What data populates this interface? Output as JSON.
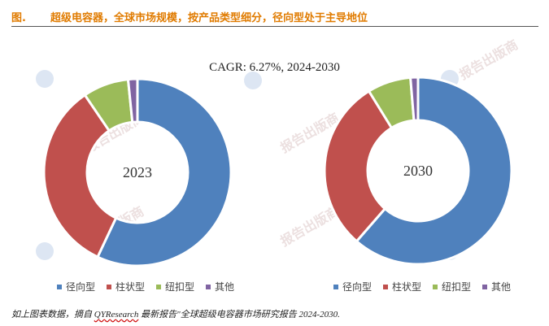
{
  "header": {
    "figure_label": "图.",
    "title": "超级电容器，全球市场规模，按产品类型细分，径向型处于主导地位"
  },
  "cagr_text": "CAGR: 6.27%, 2024-2030",
  "watermark_text": "报告出版商",
  "chart_data": [
    {
      "type": "pie",
      "donut": true,
      "center_label": "2023",
      "categories": [
        "径向型",
        "柱状型",
        "纽扣型",
        "其他"
      ],
      "values": [
        57.0,
        33.5,
        7.9,
        1.6
      ],
      "colors": [
        "#4F81BD",
        "#C0504D",
        "#9BBB59",
        "#8064A2"
      ]
    },
    {
      "type": "pie",
      "donut": true,
      "center_label": "2030",
      "categories": [
        "径向型",
        "柱状型",
        "纽扣型",
        "其他"
      ],
      "values": [
        61.4,
        29.8,
        7.5,
        1.3
      ],
      "colors": [
        "#4F81BD",
        "#C0504D",
        "#9BBB59",
        "#8064A2"
      ]
    }
  ],
  "legend": [
    {
      "label": "径向型",
      "color": "#4F81BD"
    },
    {
      "label": "柱状型",
      "color": "#C0504D"
    },
    {
      "label": "纽扣型",
      "color": "#9BBB59"
    },
    {
      "label": "其他",
      "color": "#8064A2"
    }
  ],
  "footnote": {
    "before": "如上图表数据，摘自",
    "source": "QYResearch",
    "after": "最新报告\"全球超级电容器市场研究报告 2024-2030."
  }
}
